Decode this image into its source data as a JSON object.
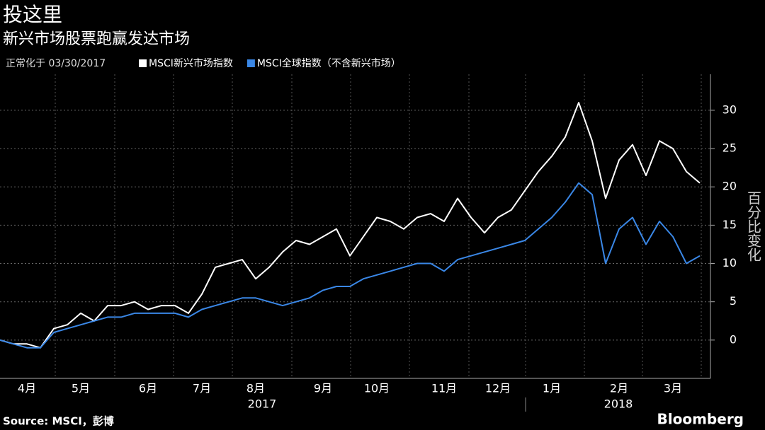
{
  "chart_data": {
    "type": "line",
    "title": "投这里",
    "subtitle": "新兴市场股票跑赢发达市场",
    "note": "正常化于 03/30/2017",
    "y_label": "百分比变化",
    "source": "Source: MSCI，彭博",
    "brand": "Bloomberg",
    "year_labels": [
      "2017",
      "2018"
    ],
    "categories": [
      null,
      null,
      "4月",
      null,
      null,
      null,
      "5月",
      null,
      null,
      null,
      null,
      "6月",
      null,
      null,
      null,
      "7月",
      null,
      null,
      null,
      "8月",
      null,
      null,
      null,
      null,
      "9月",
      null,
      null,
      null,
      "10月",
      null,
      null,
      null,
      null,
      "11月",
      null,
      null,
      null,
      "12月",
      null,
      null,
      null,
      "1月",
      null,
      null,
      null,
      null,
      "2月",
      null,
      null,
      null,
      "3月",
      null,
      null
    ],
    "series": [
      {
        "name": "MSCI新兴市场指数",
        "color": "#ffffff",
        "values": [
          0,
          -0.5,
          -0.5,
          -1,
          1.5,
          2,
          3.5,
          2.5,
          4.5,
          4.5,
          5,
          4,
          4.5,
          4.5,
          3.5,
          6,
          9.5,
          10,
          10.5,
          8,
          9.5,
          11.5,
          13,
          12.5,
          13.5,
          14.5,
          11,
          13.5,
          16,
          15.5,
          14.5,
          16,
          16.5,
          15.5,
          18.5,
          16,
          14,
          16,
          17,
          19.5,
          22,
          24,
          26.5,
          31,
          26,
          18.5,
          23.5,
          25.5,
          21.5,
          26,
          25,
          22,
          20.5
        ]
      },
      {
        "name": "MSCI全球指数（不含新兴市场）",
        "color": "#3a87e6",
        "values": [
          0,
          -0.5,
          -1,
          -1,
          1,
          1.5,
          2,
          2.5,
          3,
          3,
          3.5,
          3.5,
          3.5,
          3.5,
          3,
          4,
          4.5,
          5,
          5.5,
          5.5,
          5,
          4.5,
          5,
          5.5,
          6.5,
          7,
          7,
          8,
          8.5,
          9,
          9.5,
          10,
          10,
          9,
          10.5,
          11,
          11.5,
          12,
          12.5,
          13,
          14.5,
          16,
          18,
          20.5,
          19,
          10,
          14.5,
          16,
          12.5,
          15.5,
          13.5,
          10,
          11
        ]
      }
    ],
    "ylim": [
      -5,
      34.7
    ],
    "yticks": [
      0,
      5,
      10,
      15,
      20,
      25,
      30
    ],
    "grid": true
  }
}
